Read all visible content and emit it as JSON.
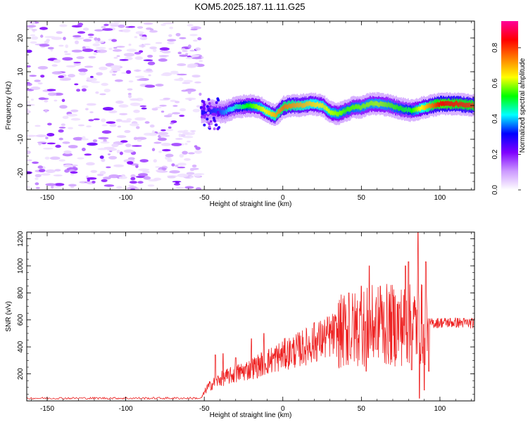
{
  "title": "KOM5.2025.187.11.11.G25",
  "chart_data": [
    {
      "type": "heatmap",
      "xlabel": "Height of straight line (km)",
      "ylabel": "Frequency (Hz)",
      "xlim": [
        -163,
        122
      ],
      "ylim": [
        -25,
        25
      ],
      "xticks": [
        -150,
        -100,
        -50,
        0,
        50,
        100
      ],
      "yticks": [
        -20,
        -10,
        0,
        10,
        20
      ],
      "colorbar": {
        "label": "Normalized spectral amplitude",
        "range": [
          0,
          0.95
        ],
        "ticks": [
          0.0,
          0.2,
          0.4,
          0.6,
          0.8
        ],
        "colors": [
          "#ffffff",
          "#cc99ff",
          "#7f00ff",
          "#0000ff",
          "#00ffff",
          "#00ff00",
          "#ffff00",
          "#ff8000",
          "#ff0000",
          "#ff0099"
        ]
      },
      "noise_region_x": [
        -163,
        -52
      ],
      "trace_centerline": [
        {
          "x": -52,
          "y": -2.0
        },
        {
          "x": -45,
          "y": -1.5
        },
        {
          "x": -38,
          "y": -2.0
        },
        {
          "x": -30,
          "y": -0.5
        },
        {
          "x": -22,
          "y": 0.0
        },
        {
          "x": -15,
          "y": -0.5
        },
        {
          "x": -10,
          "y": -2.0
        },
        {
          "x": -5,
          "y": -3.0
        },
        {
          "x": 0,
          "y": -0.5
        },
        {
          "x": 5,
          "y": 0.0
        },
        {
          "x": 10,
          "y": 0.0
        },
        {
          "x": 18,
          "y": 0.5
        },
        {
          "x": 25,
          "y": 0.0
        },
        {
          "x": 30,
          "y": -2.0
        },
        {
          "x": 35,
          "y": -2.5
        },
        {
          "x": 40,
          "y": -1.5
        },
        {
          "x": 45,
          "y": -0.5
        },
        {
          "x": 50,
          "y": -0.5
        },
        {
          "x": 55,
          "y": 0.5
        },
        {
          "x": 60,
          "y": 0.5
        },
        {
          "x": 68,
          "y": 0.0
        },
        {
          "x": 75,
          "y": -1.0
        },
        {
          "x": 82,
          "y": -1.5
        },
        {
          "x": 90,
          "y": -0.5
        },
        {
          "x": 100,
          "y": 0.5
        },
        {
          "x": 110,
          "y": 0.5
        },
        {
          "x": 122,
          "y": 0.0
        }
      ],
      "trace_amplitude": [
        {
          "x": -52,
          "a": 0.3
        },
        {
          "x": -40,
          "a": 0.35
        },
        {
          "x": -20,
          "a": 0.55
        },
        {
          "x": 0,
          "a": 0.75
        },
        {
          "x": 20,
          "a": 0.65
        },
        {
          "x": 40,
          "a": 0.55
        },
        {
          "x": 60,
          "a": 0.6
        },
        {
          "x": 80,
          "a": 0.5
        },
        {
          "x": 100,
          "a": 0.85
        },
        {
          "x": 122,
          "a": 0.8
        }
      ]
    },
    {
      "type": "line",
      "xlabel": "Height of straight line (km)",
      "ylabel": "SNR (v/v)",
      "xlim": [
        -163,
        122
      ],
      "ylim": [
        0,
        1250
      ],
      "xticks": [
        -150,
        -100,
        -50,
        0,
        50,
        100
      ],
      "yticks": [
        200,
        400,
        600,
        800,
        1000,
        1200
      ],
      "series": [
        {
          "color": "#ee2222",
          "baseline": [
            {
              "x": -163,
              "y": 20
            },
            {
              "x": -52,
              "y": 20
            },
            {
              "x": -48,
              "y": 100
            },
            {
              "x": -40,
              "y": 160
            },
            {
              "x": -30,
              "y": 200
            },
            {
              "x": -20,
              "y": 240
            },
            {
              "x": -10,
              "y": 290
            },
            {
              "x": 0,
              "y": 340
            },
            {
              "x": 10,
              "y": 380
            },
            {
              "x": 20,
              "y": 430
            },
            {
              "x": 30,
              "y": 480
            },
            {
              "x": 40,
              "y": 520
            },
            {
              "x": 50,
              "y": 540
            },
            {
              "x": 60,
              "y": 560
            },
            {
              "x": 70,
              "y": 560
            },
            {
              "x": 80,
              "y": 560
            },
            {
              "x": 90,
              "y": 570
            },
            {
              "x": 100,
              "y": 580
            },
            {
              "x": 110,
              "y": 580
            },
            {
              "x": 122,
              "y": 575
            }
          ],
          "peaks": [
            {
              "x": -43,
              "y": 340
            },
            {
              "x": -38,
              "y": 350
            },
            {
              "x": -30,
              "y": 320
            },
            {
              "x": -20,
              "y": 460
            },
            {
              "x": -12,
              "y": 500
            },
            {
              "x": 20,
              "y": 580
            },
            {
              "x": 42,
              "y": 800
            },
            {
              "x": 50,
              "y": 850
            },
            {
              "x": 55,
              "y": 1000
            },
            {
              "x": 62,
              "y": 850
            },
            {
              "x": 70,
              "y": 780
            },
            {
              "x": 78,
              "y": 1000
            },
            {
              "x": 80,
              "y": 1030
            },
            {
              "x": 86,
              "y": 1250
            },
            {
              "x": 91,
              "y": 1030
            }
          ],
          "troughs": [
            {
              "x": 43,
              "y": 340
            },
            {
              "x": 53,
              "y": 220
            },
            {
              "x": 60,
              "y": 380
            },
            {
              "x": 82,
              "y": 230
            },
            {
              "x": 87,
              "y": 20
            },
            {
              "x": 90,
              "y": 80
            },
            {
              "x": 93,
              "y": 220
            }
          ]
        }
      ]
    }
  ]
}
